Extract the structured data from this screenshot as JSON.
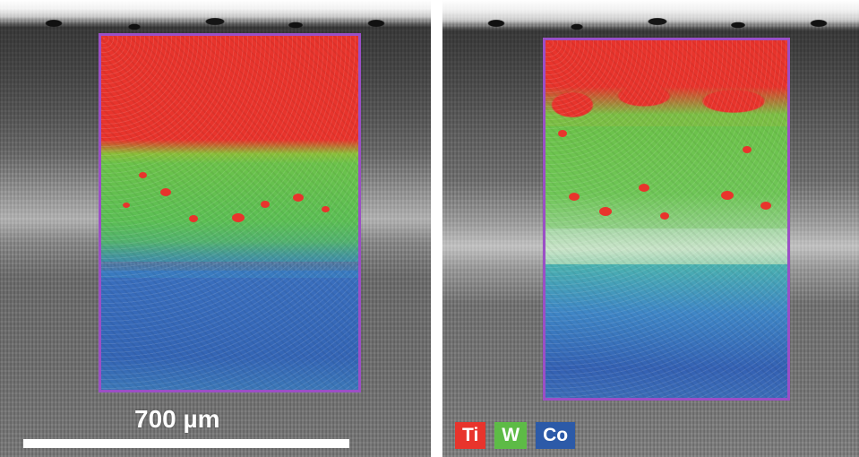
{
  "scale_bar": {
    "label": "700 µm"
  },
  "legend": {
    "items": [
      {
        "label": "Ti",
        "color": "#e8342c"
      },
      {
        "label": "W",
        "color": "#5dbb46"
      },
      {
        "label": "Co",
        "color": "#2c5aa8"
      }
    ]
  },
  "colors": {
    "map_border": "#9b4fc6",
    "ti": "#e8342c",
    "w": "#6cc24a",
    "co": "#3465b5"
  }
}
